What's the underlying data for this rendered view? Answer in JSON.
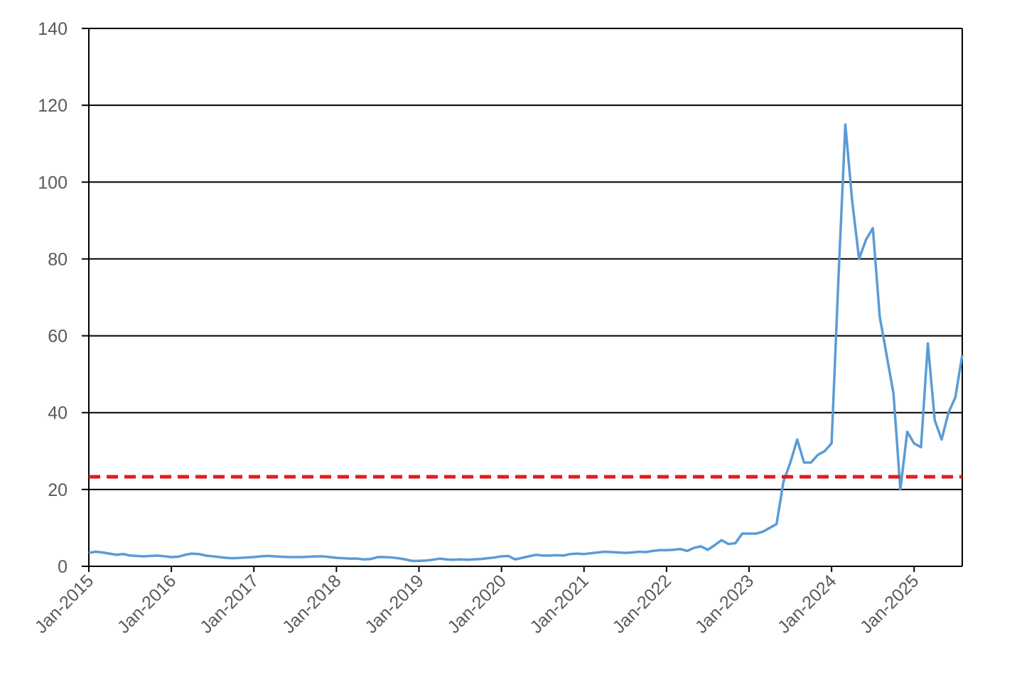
{
  "chart_data": {
    "type": "line",
    "x": [
      "2015-01",
      "2015-02",
      "2015-03",
      "2015-04",
      "2015-05",
      "2015-06",
      "2015-07",
      "2015-08",
      "2015-09",
      "2015-10",
      "2015-11",
      "2015-12",
      "2016-01",
      "2016-02",
      "2016-03",
      "2016-04",
      "2016-05",
      "2016-06",
      "2016-07",
      "2016-08",
      "2016-09",
      "2016-10",
      "2016-11",
      "2016-12",
      "2017-01",
      "2017-02",
      "2017-03",
      "2017-04",
      "2017-05",
      "2017-06",
      "2017-07",
      "2017-08",
      "2017-09",
      "2017-10",
      "2017-11",
      "2017-12",
      "2018-01",
      "2018-02",
      "2018-03",
      "2018-04",
      "2018-05",
      "2018-06",
      "2018-07",
      "2018-08",
      "2018-09",
      "2018-10",
      "2018-11",
      "2018-12",
      "2019-01",
      "2019-02",
      "2019-03",
      "2019-04",
      "2019-05",
      "2019-06",
      "2019-07",
      "2019-08",
      "2019-09",
      "2019-10",
      "2019-11",
      "2019-12",
      "2020-01",
      "2020-02",
      "2020-03",
      "2020-04",
      "2020-05",
      "2020-06",
      "2020-07",
      "2020-08",
      "2020-09",
      "2020-10",
      "2020-11",
      "2020-12",
      "2021-01",
      "2021-02",
      "2021-03",
      "2021-04",
      "2021-05",
      "2021-06",
      "2021-07",
      "2021-08",
      "2021-09",
      "2021-10",
      "2021-11",
      "2021-12",
      "2022-01",
      "2022-02",
      "2022-03",
      "2022-04",
      "2022-05",
      "2022-06",
      "2022-07",
      "2022-08",
      "2022-09",
      "2022-10",
      "2022-11",
      "2022-12",
      "2023-01",
      "2023-02",
      "2023-03",
      "2023-04",
      "2023-05",
      "2023-06",
      "2023-07",
      "2023-08",
      "2023-09",
      "2023-10",
      "2023-11",
      "2023-12",
      "2024-01",
      "2024-02",
      "2024-03",
      "2024-04",
      "2024-05",
      "2024-06",
      "2024-07",
      "2024-08",
      "2024-09",
      "2024-10",
      "2024-11",
      "2024-12",
      "2025-01",
      "2025-02",
      "2025-03",
      "2025-04",
      "2025-05",
      "2025-06",
      "2025-07",
      "2025-08"
    ],
    "series": [
      {
        "color": "#5b9bd5",
        "values": [
          3.5,
          3.8,
          3.6,
          3.3,
          3.0,
          3.2,
          2.8,
          2.7,
          2.6,
          2.7,
          2.8,
          2.6,
          2.4,
          2.5,
          3.0,
          3.3,
          3.2,
          2.8,
          2.6,
          2.4,
          2.2,
          2.1,
          2.2,
          2.3,
          2.4,
          2.6,
          2.7,
          2.6,
          2.5,
          2.4,
          2.4,
          2.4,
          2.5,
          2.6,
          2.6,
          2.4,
          2.2,
          2.1,
          2.0,
          2.0,
          1.8,
          1.9,
          2.4,
          2.4,
          2.3,
          2.1,
          1.8,
          1.4,
          1.4,
          1.5,
          1.7,
          2.0,
          1.8,
          1.7,
          1.8,
          1.7,
          1.8,
          1.9,
          2.1,
          2.3,
          2.6,
          2.7,
          1.8,
          2.2,
          2.6,
          3.0,
          2.8,
          2.8,
          2.9,
          2.8,
          3.2,
          3.3,
          3.2,
          3.4,
          3.6,
          3.8,
          3.7,
          3.6,
          3.5,
          3.6,
          3.8,
          3.7,
          4.0,
          4.2,
          4.2,
          4.3,
          4.5,
          4.0,
          4.8,
          5.2,
          4.3,
          5.5,
          6.8,
          5.8,
          6.0,
          8.5,
          8.5,
          8.5,
          9,
          10,
          11,
          22,
          27,
          33,
          27,
          27,
          29,
          30,
          32,
          75,
          115,
          95,
          80,
          85,
          88,
          65,
          55,
          45,
          20,
          35,
          32,
          31,
          58,
          38,
          33,
          40,
          44,
          55
        ]
      }
    ],
    "reference_line": {
      "value": 23.3,
      "color": "#e31a1c"
    },
    "xlim": [
      "2015-01",
      "2025-08"
    ],
    "xticks": [
      {
        "value": "2015-01",
        "label": "Jan-2015"
      },
      {
        "value": "2016-01",
        "label": "Jan-2016"
      },
      {
        "value": "2017-01",
        "label": "Jan-2017"
      },
      {
        "value": "2018-01",
        "label": "Jan-2018"
      },
      {
        "value": "2019-01",
        "label": "Jan-2019"
      },
      {
        "value": "2020-01",
        "label": "Jan-2020"
      },
      {
        "value": "2021-01",
        "label": "Jan-2021"
      },
      {
        "value": "2022-01",
        "label": "Jan-2022"
      },
      {
        "value": "2023-01",
        "label": "Jan-2023"
      },
      {
        "value": "2024-01",
        "label": "Jan-2024"
      },
      {
        "value": "2025-01",
        "label": "Jan-2025"
      }
    ],
    "ylim": [
      0,
      140
    ],
    "yticks": [
      0,
      20,
      40,
      60,
      80,
      100,
      120,
      140
    ],
    "grid": true
  }
}
